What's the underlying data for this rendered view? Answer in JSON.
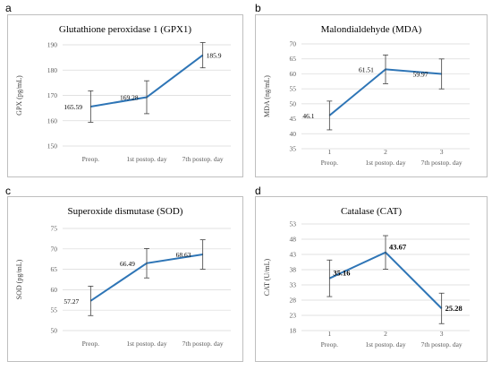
{
  "panels": [
    {
      "letter": "a"
    },
    {
      "letter": "b"
    },
    {
      "letter": "c"
    },
    {
      "letter": "d"
    }
  ],
  "chart_data": [
    {
      "type": "line",
      "title": "Glutathione peroxidase 1 (GPX1)",
      "ylabel": "GPX (pg/mL)",
      "categories": [
        "Preop.",
        "1st postop. day",
        "7th postop. day"
      ],
      "index_labels": [],
      "values": [
        165.59,
        169.28,
        185.9
      ],
      "data_labels": [
        "165.59",
        "169.28",
        "185.9"
      ],
      "error": [
        6.2,
        6.5,
        5.0
      ],
      "ylim": [
        150,
        190
      ],
      "yticks": [
        150,
        160,
        170,
        180,
        190
      ],
      "bold_labels": false,
      "grid": true,
      "color": "#2e75b6"
    },
    {
      "type": "line",
      "title": "Malondialdehyde (MDA)",
      "ylabel": "MDA (ng/mL)",
      "categories": [
        "Preop.",
        "1st postop. day",
        "7th postop. day"
      ],
      "index_labels": [
        "1",
        "2",
        "3"
      ],
      "values": [
        46.1,
        61.51,
        59.97
      ],
      "data_labels": [
        "46.1",
        "61.51",
        "59.97"
      ],
      "error": [
        4.8,
        4.8,
        5.0
      ],
      "ylim": [
        35,
        70
      ],
      "yticks": [
        35,
        40,
        45,
        50,
        55,
        60,
        65,
        70
      ],
      "bold_labels": false,
      "grid": true,
      "color": "#2e75b6"
    },
    {
      "type": "line",
      "title": "Superoxide dismutase (SOD)",
      "ylabel": "SOD (pg/mL)",
      "categories": [
        "Preop.",
        "1st postop. day",
        "7th postop. day"
      ],
      "index_labels": [],
      "values": [
        57.27,
        66.49,
        68.63
      ],
      "data_labels": [
        "57.27",
        "66.49",
        "68.63"
      ],
      "error": [
        3.6,
        3.6,
        3.6
      ],
      "ylim": [
        50,
        75
      ],
      "yticks": [
        50,
        55,
        60,
        65,
        70,
        75
      ],
      "bold_labels": false,
      "grid": true,
      "color": "#2e75b6"
    },
    {
      "type": "line",
      "title": "Catalase (CAT)",
      "ylabel": "CAT (U/mL)",
      "categories": [
        "Preop.",
        "1st postop. day",
        "7th postop. day"
      ],
      "index_labels": [
        "1",
        "2",
        "3"
      ],
      "values": [
        35.16,
        43.67,
        25.28
      ],
      "data_labels": [
        "35.16",
        "43.67",
        "25.28"
      ],
      "error": [
        6.0,
        5.5,
        5.0
      ],
      "ylim": [
        18,
        53
      ],
      "yticks": [
        18,
        23,
        28,
        33,
        38,
        43,
        48,
        53
      ],
      "bold_labels": true,
      "grid": true,
      "color": "#2e75b6"
    }
  ]
}
